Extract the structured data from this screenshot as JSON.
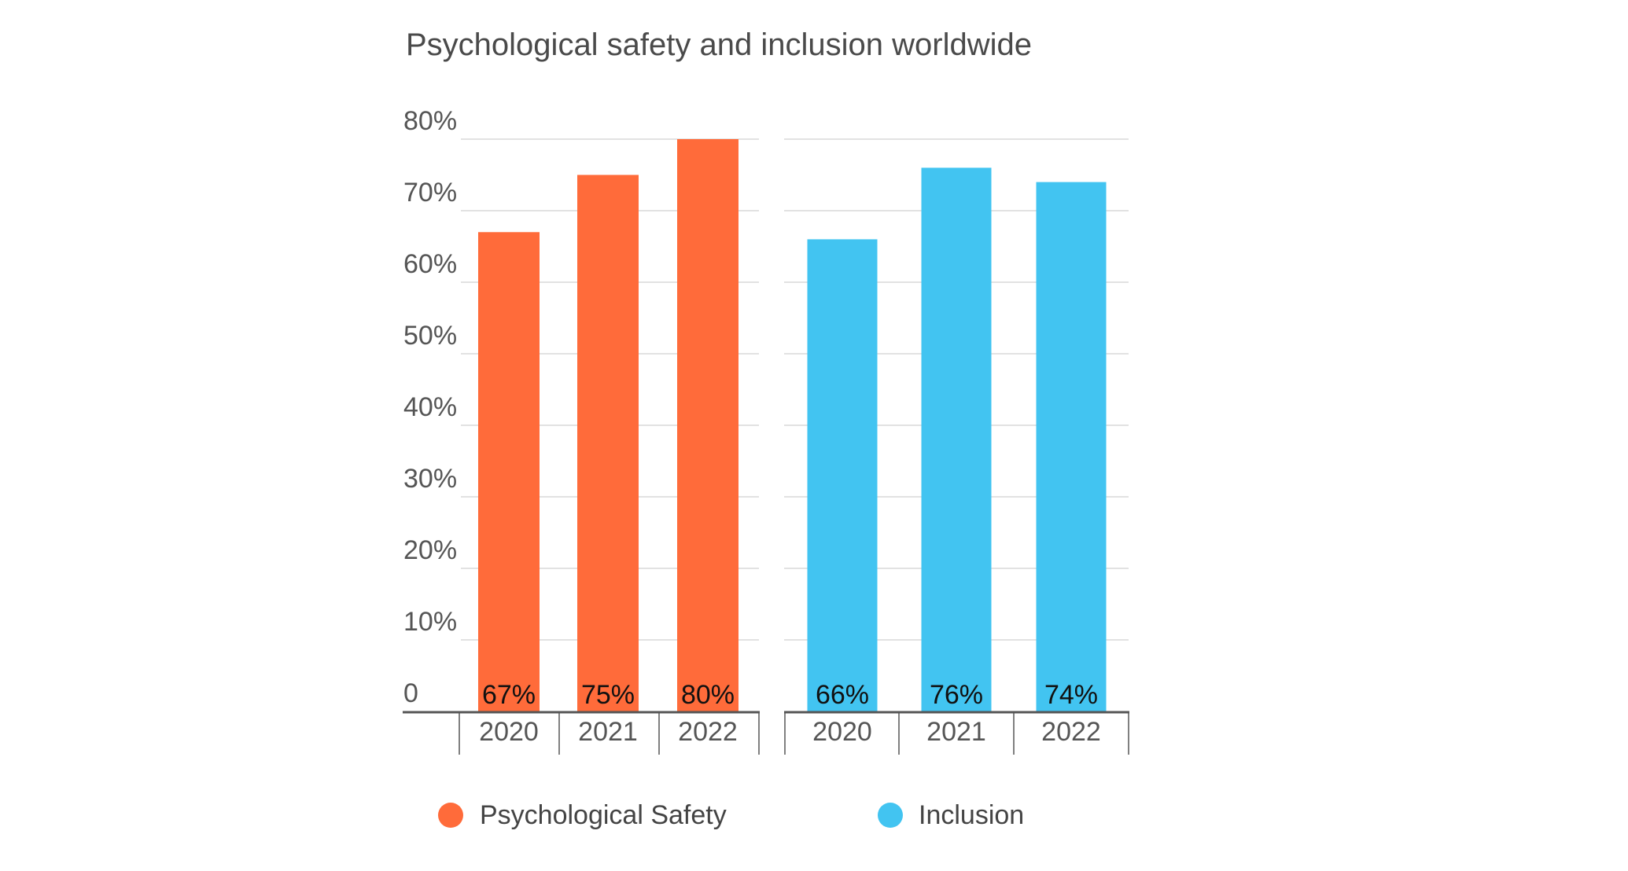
{
  "chart_data": {
    "type": "bar",
    "title": "Psychological safety and inclusion worldwide",
    "ylim": [
      0,
      80
    ],
    "yticks": [
      0,
      10,
      20,
      30,
      40,
      50,
      60,
      70,
      80
    ],
    "ytick_labels": [
      "0",
      "10%",
      "20%",
      "30%",
      "40%",
      "50%",
      "60%",
      "70%",
      "80%"
    ],
    "grid": true,
    "legend_position": "bottom",
    "panels": [
      {
        "name": "Psychological Safety",
        "color": "#FF6B3A",
        "categories": [
          "2020",
          "2021",
          "2022"
        ],
        "values": [
          67,
          75,
          80
        ],
        "labels": [
          "67%",
          "75%",
          "80%"
        ]
      },
      {
        "name": "Inclusion",
        "color": "#42C4F1",
        "categories": [
          "2020",
          "2021",
          "2022"
        ],
        "values": [
          66,
          76,
          74
        ],
        "labels": [
          "66%",
          "76%",
          "74%"
        ]
      }
    ]
  }
}
